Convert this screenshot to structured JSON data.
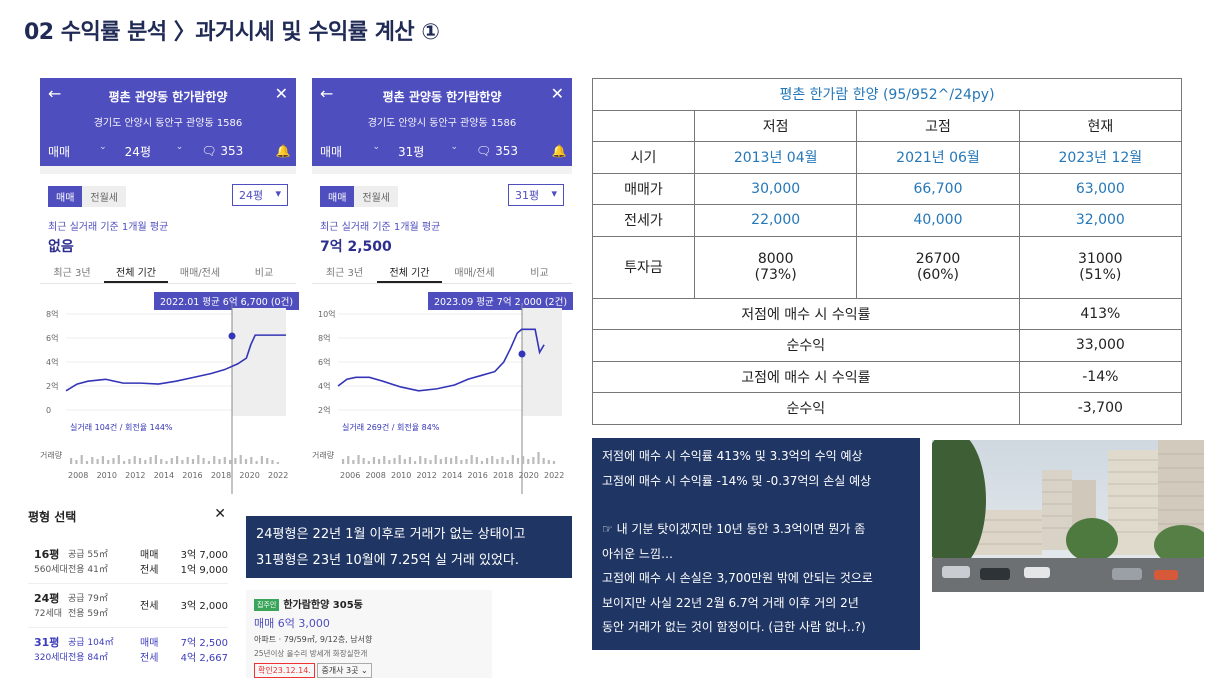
{
  "page_title": "02 수익률 분석 〉과거시세 및 수익률 계산 ①",
  "phones": [
    {
      "header_title": "평촌 관양동 한가람한양",
      "header_address": "경기도 안양시 동안구 관양동 1586",
      "bar_type": "매매",
      "bar_size": "24평",
      "bar_comments": "353",
      "toggle_on": "매매",
      "toggle_off": "전월세",
      "select": "24평",
      "avg_label": "최근 실거래 기준 1개월 평균",
      "avg_value": "없음",
      "tabs": [
        "최근 3년",
        "전체 기간",
        "매매/전세",
        "비교"
      ],
      "tooltip": "2022.01 평균 6억 6,700 (0건)",
      "y_ticks": [
        "8억",
        "6억",
        "4억",
        "2억",
        "0"
      ],
      "stats": "실거래 104건 / 회전율 144%",
      "volume_label": "거래량",
      "x_ticks": [
        "2008",
        "2010",
        "2012",
        "2014",
        "2016",
        "2018",
        "2020",
        "2022"
      ]
    },
    {
      "header_title": "평촌 관양동 한가람한양",
      "header_address": "경기도 안양시 동안구 관양동 1586",
      "bar_type": "매매",
      "bar_size": "31평",
      "bar_comments": "353",
      "toggle_on": "매매",
      "toggle_off": "전월세",
      "select": "31평",
      "avg_label": "최근 실거래 기준 1개월 평균",
      "avg_value": "7억 2,500",
      "tabs": [
        "최근 3년",
        "전체 기간",
        "매매/전세",
        "비교"
      ],
      "tooltip": "2023.09 평균 7억 2,000 (2건)",
      "y_ticks": [
        "10억",
        "8억",
        "6억",
        "4억",
        "2억"
      ],
      "stats": "실거래 269건 / 회전율 84%",
      "volume_label": "거래량",
      "x_ticks": [
        "2006",
        "2008",
        "2010",
        "2012",
        "2014",
        "2016",
        "2018",
        "2020",
        "2022"
      ]
    }
  ],
  "pyeong": {
    "title": "평형 선택",
    "rows": [
      {
        "pn": "16평",
        "ps": "560세대",
        "sup1": "공급 55㎡",
        "sup2": "전용 41㎡",
        "t1": "매매",
        "t2": "전세",
        "v1": "3억 7,000",
        "v2": "1억 9,000"
      },
      {
        "pn": "24평",
        "ps": "72세대",
        "sup1": "공급 79㎡",
        "sup2": "전용 59㎡",
        "t1": "",
        "t2": "전세",
        "v1": "",
        "v2": "3억 2,000"
      },
      {
        "pn": "31평",
        "ps": "320세대",
        "sup1": "공급 104㎡",
        "sup2": "전용 84㎡",
        "t1": "매매",
        "t2": "전세",
        "v1": "7억 2,500",
        "v2": "4억 2,667"
      }
    ]
  },
  "note1": [
    "24평형은 22년 1월 이후로 거래가 없는 상태이고",
    "31평형은 23년 10월에 7.25억 실 거래 있었다."
  ],
  "card": {
    "badge": "집주인",
    "name": "한가람한양 305동",
    "price": "매매 6억 3,000",
    "desc": "아파트 · 79/59㎡, 9/12층, 남서향",
    "tags": "25년이상  올수리  방세개  화장실한개",
    "btn1": "확인23.12.14.",
    "btn2": "중개사 3곳 ⌄"
  },
  "table": {
    "title": "평촌 한가람 한양 (95/952^/24py)",
    "col_headers": [
      "저점",
      "고점",
      "현재"
    ],
    "rows": [
      {
        "label": "시기",
        "values": [
          "2013년 04월",
          "2021년 06월",
          "2023년 12월"
        ]
      },
      {
        "label": "매매가",
        "values": [
          "30,000",
          "66,700",
          "63,000"
        ]
      },
      {
        "label": "전세가",
        "values": [
          "22,000",
          "40,000",
          "32,000"
        ]
      },
      {
        "label": "투자금",
        "values": [
          [
            "8000",
            "(73%)"
          ],
          [
            "26700",
            "(60%)"
          ],
          [
            "31000",
            "(51%)"
          ]
        ]
      }
    ],
    "summary": [
      {
        "label": "저점에 매수 시 수익률",
        "value": "413%"
      },
      {
        "label": "순수익",
        "value": "33,000"
      },
      {
        "label": "고점에 매수 시 수익률",
        "value": "-14%"
      },
      {
        "label": "순수익",
        "value": "-3,700"
      }
    ]
  },
  "note2": [
    "저점에 매수 시 수익률 413% 및 3.3억의 수익 예상",
    "고점에 매수 시 수익률 -14% 및 -0.37억의 손실 예상",
    "",
    "☞ 내 기분 탓이겠지만 10년 동안 3.3억이면 뭔가 좀",
    "아쉬운 느낌…",
    "고점에 매수 시 손실은 3,700만원 밖에 안되는 것으로",
    "보이지만 사실 22년 2월 6.7억 거래 이후 거의 2년",
    "동안 거래가 없는 것이 함정이다. (급한 사람 없나..?)"
  ]
}
